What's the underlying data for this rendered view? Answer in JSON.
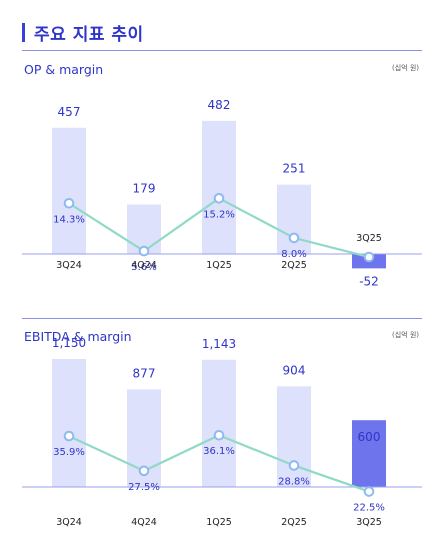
{
  "page_title": "주요 지표 추이",
  "colors": {
    "accent": "#2f35c9",
    "bar": "#dde1fb",
    "bar_highlight": "#6d74ec",
    "line": "#8fd9c7",
    "marker_fill": "#ffffff",
    "marker_stroke": "#8fb9f1"
  },
  "chart_data": [
    {
      "type": "bar",
      "title": "OP & margin",
      "unit": "(십억 원)",
      "categories": [
        "3Q24",
        "4Q24",
        "1Q25",
        "2Q25",
        "3Q25"
      ],
      "series": [
        {
          "values": [
            457,
            179,
            482,
            251,
            -52
          ]
        },
        {
          "values": [
            14.3,
            5.6,
            15.2,
            8.0,
            null
          ]
        }
      ],
      "value_labels": [
        "457",
        "179",
        "482",
        "251",
        "-52"
      ],
      "margin_labels": [
        "14.3%",
        "5.6%",
        "15.2%",
        "8.0%",
        ""
      ],
      "highlight_index": 4,
      "ylim": [
        -90,
        530
      ],
      "grid": false
    },
    {
      "type": "bar",
      "title": "EBITDA & margin",
      "unit": "(십억 원)",
      "categories": [
        "3Q24",
        "4Q24",
        "1Q25",
        "2Q25",
        "3Q25"
      ],
      "series": [
        {
          "values": [
            1150,
            877,
            1143,
            904,
            600
          ]
        },
        {
          "values": [
            35.9,
            27.5,
            36.1,
            28.8,
            22.5
          ]
        }
      ],
      "value_labels": [
        "1,150",
        "877",
        "1,143",
        "904",
        "600"
      ],
      "margin_labels": [
        "35.9%",
        "27.5%",
        "36.1%",
        "28.8%",
        "22.5%"
      ],
      "highlight_index": 4,
      "ylim": [
        0,
        1260
      ],
      "grid": false
    }
  ]
}
